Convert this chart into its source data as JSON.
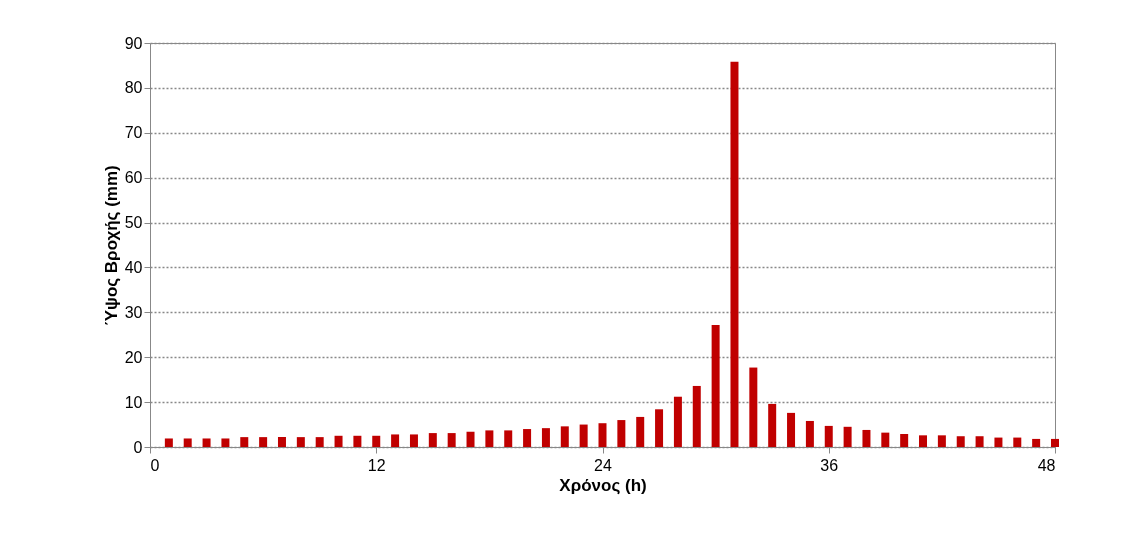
{
  "chart_data": {
    "type": "bar",
    "xlabel": "Χρόνος (h)",
    "ylabel": "Ύψος Βροχής (mm)",
    "color": "#c00000",
    "x": [
      1,
      2,
      3,
      4,
      5,
      6,
      7,
      8,
      9,
      10,
      11,
      12,
      13,
      14,
      15,
      16,
      17,
      18,
      19,
      20,
      21,
      22,
      23,
      24,
      25,
      26,
      27,
      28,
      29,
      30,
      31,
      32,
      33,
      34,
      35,
      36,
      37,
      38,
      39,
      40,
      41,
      42,
      43,
      44,
      45,
      46,
      47,
      48
    ],
    "values": [
      1.9,
      1.9,
      1.9,
      1.9,
      2.2,
      2.2,
      2.2,
      2.2,
      2.2,
      2.5,
      2.5,
      2.5,
      2.8,
      2.8,
      3.1,
      3.1,
      3.4,
      3.7,
      3.7,
      4.0,
      4.2,
      4.6,
      5.0,
      5.3,
      6.0,
      6.7,
      8.4,
      11.2,
      13.6,
      27.2,
      85.8,
      17.7,
      9.6,
      7.6,
      5.8,
      4.7,
      4.5,
      3.8,
      3.2,
      2.9,
      2.6,
      2.6,
      2.4,
      2.4,
      2.1,
      2.1,
      1.8,
      1.8
    ],
    "xlim": [
      0,
      48
    ],
    "xticks": [
      0,
      12,
      24,
      36,
      48
    ],
    "ylim": [
      0,
      90
    ],
    "yticks": [
      0,
      10,
      20,
      30,
      40,
      50,
      60,
      70,
      80,
      90
    ],
    "grid": "y",
    "line_style": "dotted"
  }
}
